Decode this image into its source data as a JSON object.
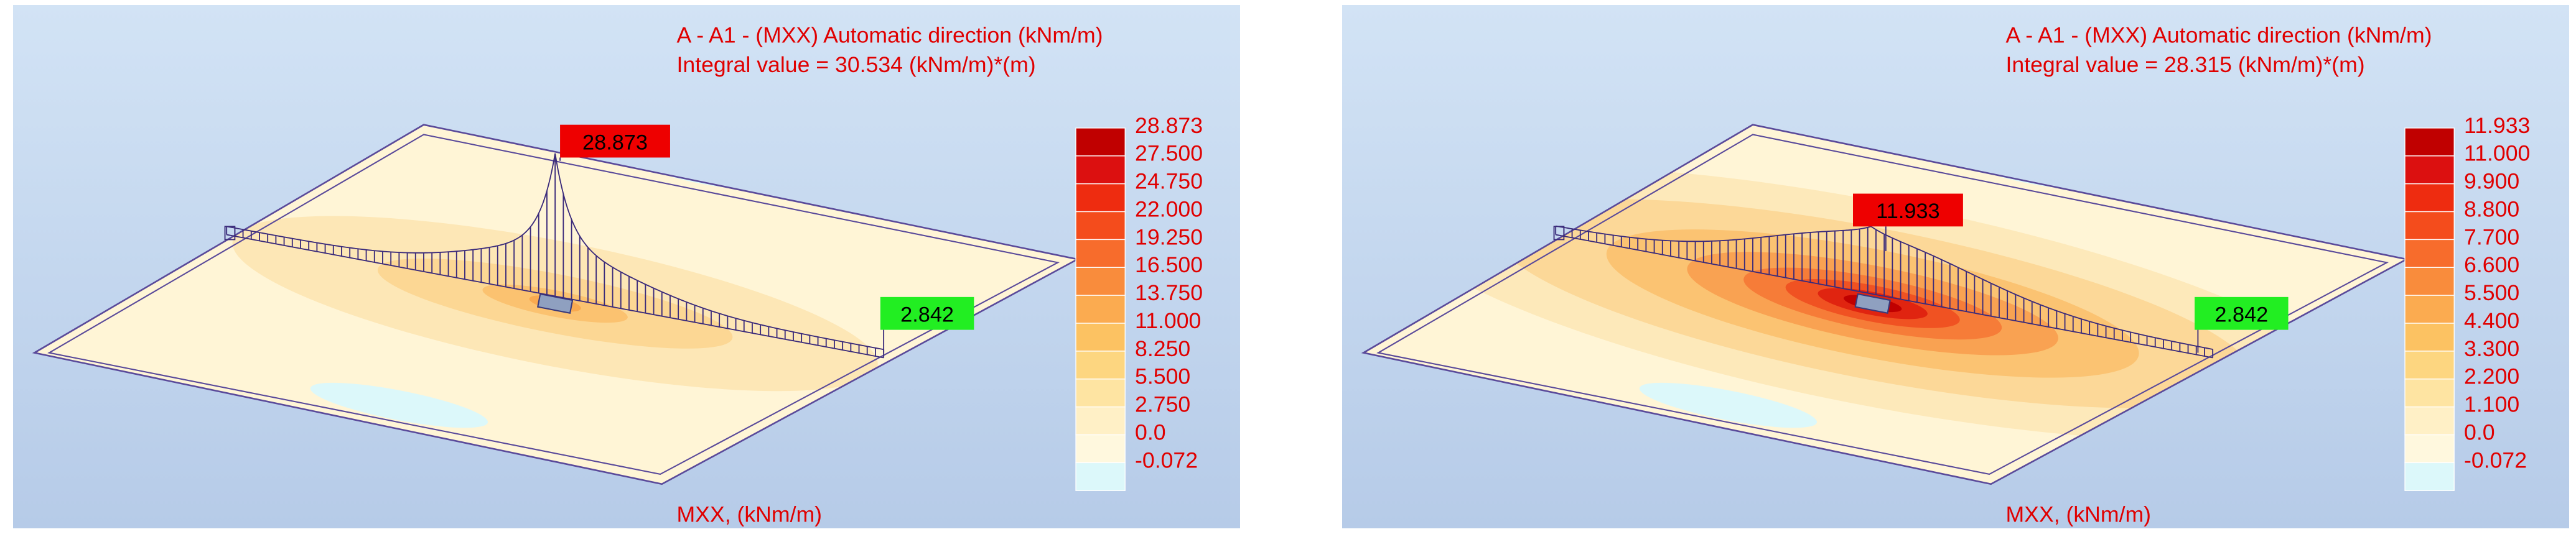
{
  "panels": [
    {
      "title": "A - A1 - (MXX) Automatic direction (kNm/m)",
      "subtitle": "Integral value = 30.534 (kNm/m)*(m)",
      "footer": "MXX, (kNm/m)",
      "max_label": "28.873",
      "end_label": "2.842",
      "legend": [
        "28.873",
        "27.500",
        "24.750",
        "22.000",
        "19.250",
        "16.500",
        "13.750",
        "11.000",
        "8.250",
        "5.500",
        "2.750",
        "0.0",
        "-0.072"
      ]
    },
    {
      "title": "A - A1 - (MXX) Automatic direction (kNm/m)",
      "subtitle": "Integral value = 28.315 (kNm/m)*(m)",
      "footer": "MXX, (kNm/m)",
      "max_label": "11.933",
      "end_label": "2.842",
      "legend": [
        "11.933",
        "11.000",
        "9.900",
        "8.800",
        "7.700",
        "6.600",
        "5.500",
        "4.400",
        "3.300",
        "2.200",
        "1.100",
        "0.0",
        "-0.072"
      ]
    }
  ]
}
